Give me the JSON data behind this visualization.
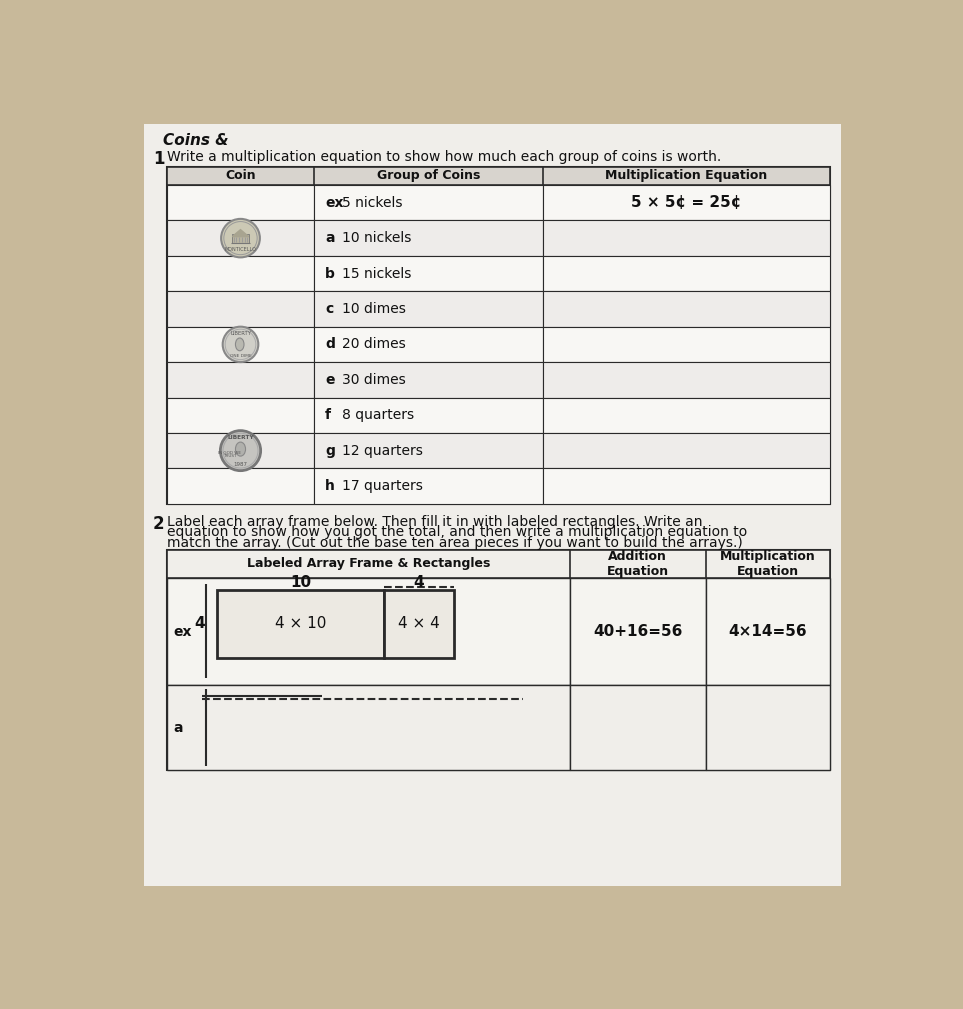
{
  "title_top": "Coins &",
  "section1_instruction": "Write a multiplication equation to show how much each group of coins is worth.",
  "section1_number": "1",
  "col1_header": "Coin",
  "col2_header": "Group of Coins",
  "col3_header": "Multiplication Equation",
  "rows": [
    {
      "label": "ex",
      "text": "5 nickels",
      "equation": "5 × 5¢ = 25¢",
      "coin_group": "nickel"
    },
    {
      "label": "a",
      "text": "10 nickels",
      "equation": "",
      "coin_group": "nickel"
    },
    {
      "label": "b",
      "text": "15 nickels",
      "equation": "",
      "coin_group": "nickel"
    },
    {
      "label": "c",
      "text": "10 dimes",
      "equation": "",
      "coin_group": "dime"
    },
    {
      "label": "d",
      "text": "20 dimes",
      "equation": "",
      "coin_group": "dime"
    },
    {
      "label": "e",
      "text": "30 dimes",
      "equation": "",
      "coin_group": "dime"
    },
    {
      "label": "f",
      "text": "8 quarters",
      "equation": "",
      "coin_group": "quarter"
    },
    {
      "label": "g",
      "text": "12 quarters",
      "equation": "",
      "coin_group": "quarter"
    },
    {
      "label": "h",
      "text": "17 quarters",
      "equation": "",
      "coin_group": "quarter"
    }
  ],
  "section2_number": "2",
  "section2_line1": "Label each array frame below. Then fill it in with labeled rectangles. Write an",
  "section2_line2": "equation to show how you got the total, and then write a multiplication equation to",
  "section2_line3": "match the array. (Cut out the base ten area pieces if you want to build the arrays.)",
  "col_array_header": "Labeled Array Frame & Rectangles",
  "col_addition_header": "Addition\nEquation",
  "col_mult_header": "Multiplication\nEquation",
  "ex_addition_eq": "40+16=56",
  "ex_mult_eq": "4×14=56",
  "ex_top_label1": "10",
  "ex_top_label2": "4",
  "ex_side_label": "4",
  "ex_rect1_label": "4 × 10",
  "ex_rect2_label": "4 × 4",
  "bg_color": "#c8b99a",
  "page_color": "#f0eeea",
  "line_color": "#2a2a2a",
  "header_bg": "#d8d4ce"
}
